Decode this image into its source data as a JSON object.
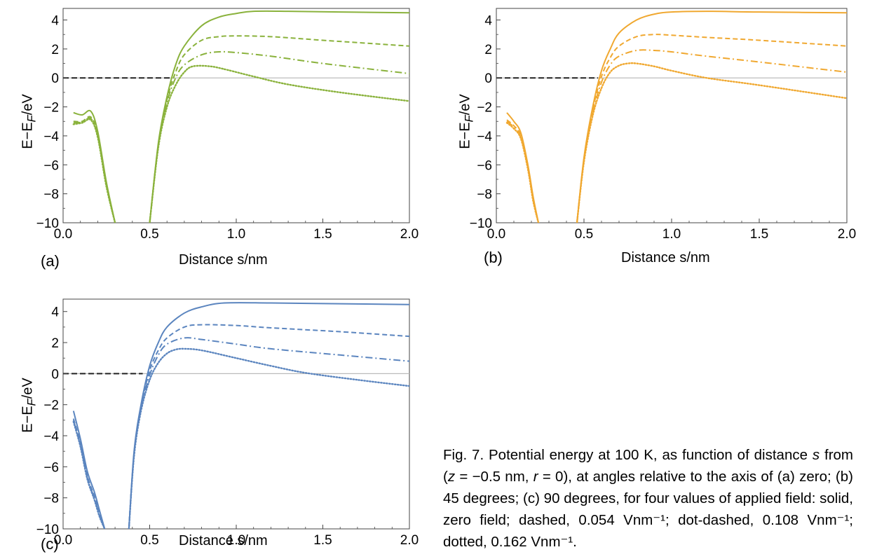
{
  "caption": {
    "lead": "Fig. 7.  Potential energy at 100 K, as function of distance ",
    "s_var": "s",
    "from_open": " from (",
    "z_var": "z",
    "z_value": " = −0.5 nm, ",
    "r_var": "r",
    "r_value": " = 0), at angles relative to the axis of (a) zero; (b) 45 degrees; (c) 90 degrees, for four values of applied field: solid, zero field; dashed, 0.054 Vnm⁻¹; dot-dashed, 0.108 Vnm⁻¹; dotted, 0.162 Vnm⁻¹."
  },
  "chart_data": [
    {
      "type": "line",
      "panel_label": "(a)",
      "color": "#8ab23c",
      "xlabel": "Distance s/nm",
      "ylabel": "E−E_F/eV",
      "ylabel_parts": {
        "pre": "E−E",
        "sub": "F",
        "post": "/eV"
      },
      "xlim": [
        0,
        2.0
      ],
      "ylim": [
        -10,
        4.8
      ],
      "xticks": [
        "0.0",
        "0.5",
        "1.0",
        "1.5",
        "2.0"
      ],
      "yticks": [
        "4",
        "2",
        "0",
        "−2",
        "−4",
        "−6",
        "−8",
        "−10"
      ],
      "fermi_dashed_to": 0.62,
      "series": [
        {
          "style": "solid",
          "left": {
            "x": [
              0.06,
              0.11,
              0.16,
              0.2,
              0.25,
              0.3
            ],
            "y": [
              -2.4,
              -2.55,
              -2.3,
              -3.7,
              -7.2,
              -10
            ]
          },
          "right": {
            "x": [
              0.5,
              0.55,
              0.6,
              0.65,
              0.7,
              0.8,
              0.9,
              1.0,
              1.1,
              1.3,
              1.6,
              2.0
            ],
            "y": [
              -10,
              -4.5,
              -1.3,
              0.9,
              2.2,
              3.6,
              4.2,
              4.45,
              4.6,
              4.6,
              4.55,
              4.5
            ]
          }
        },
        {
          "style": "dashed",
          "left": {
            "x": [
              0.06,
              0.11,
              0.16,
              0.2,
              0.25,
              0.3
            ],
            "y": [
              -3.0,
              -3.0,
              -2.7,
              -3.9,
              -7.3,
              -10
            ]
          },
          "right": {
            "x": [
              0.5,
              0.55,
              0.6,
              0.65,
              0.7,
              0.8,
              0.9,
              1.0,
              1.2,
              1.5,
              2.0
            ],
            "y": [
              -10,
              -4.6,
              -1.5,
              0.4,
              1.6,
              2.6,
              2.85,
              2.9,
              2.85,
              2.6,
              2.2
            ]
          }
        },
        {
          "style": "dashdot",
          "left": {
            "x": [
              0.06,
              0.11,
              0.16,
              0.2,
              0.25,
              0.3
            ],
            "y": [
              -3.1,
              -3.05,
              -2.8,
              -4.0,
              -7.4,
              -10
            ]
          },
          "right": {
            "x": [
              0.5,
              0.55,
              0.6,
              0.65,
              0.7,
              0.8,
              0.9,
              1.0,
              1.2,
              1.5,
              2.0
            ],
            "y": [
              -10,
              -4.7,
              -1.7,
              0.0,
              0.9,
              1.6,
              1.8,
              1.75,
              1.5,
              1.0,
              0.3
            ]
          }
        },
        {
          "style": "dotted",
          "left": {
            "x": [
              0.06,
              0.11,
              0.16,
              0.2,
              0.25,
              0.3
            ],
            "y": [
              -3.2,
              -3.1,
              -2.9,
              -4.1,
              -7.5,
              -10
            ]
          },
          "right": {
            "x": [
              0.5,
              0.55,
              0.6,
              0.65,
              0.7,
              0.75,
              0.85,
              0.95,
              1.1,
              1.3,
              1.6,
              2.0
            ],
            "y": [
              -10,
              -4.8,
              -2.0,
              -0.5,
              0.4,
              0.8,
              0.8,
              0.55,
              0.1,
              -0.45,
              -1.0,
              -1.6
            ]
          }
        }
      ]
    },
    {
      "type": "line",
      "panel_label": "(b)",
      "color": "#f0a830",
      "xlabel": "Distance s/nm",
      "ylabel": "E−E_F/eV",
      "ylabel_parts": {
        "pre": "E−E",
        "sub": "F",
        "post": "/eV"
      },
      "xlim": [
        0,
        2.0
      ],
      "ylim": [
        -10,
        4.8
      ],
      "xticks": [
        "0.0",
        "0.5",
        "1.0",
        "1.5",
        "2.0"
      ],
      "yticks": [
        "4",
        "2",
        "0",
        "−2",
        "−4",
        "−6",
        "−8",
        "−10"
      ],
      "fermi_dashed_to": 0.58,
      "series": [
        {
          "style": "solid",
          "left": {
            "x": [
              0.06,
              0.1,
              0.14,
              0.18,
              0.21,
              0.24
            ],
            "y": [
              -2.4,
              -3.0,
              -3.8,
              -6.0,
              -8.2,
              -10
            ]
          },
          "right": {
            "x": [
              0.46,
              0.5,
              0.55,
              0.6,
              0.65,
              0.7,
              0.8,
              0.9,
              1.0,
              1.2,
              1.5,
              2.0
            ],
            "y": [
              -10,
              -5.5,
              -2.0,
              0.5,
              2.0,
              3.1,
              4.0,
              4.4,
              4.55,
              4.6,
              4.55,
              4.5
            ]
          }
        },
        {
          "style": "dashed",
          "left": {
            "x": [
              0.06,
              0.1,
              0.14,
              0.18,
              0.21,
              0.24
            ],
            "y": [
              -2.9,
              -3.3,
              -4.0,
              -6.1,
              -8.3,
              -10
            ]
          },
          "right": {
            "x": [
              0.46,
              0.5,
              0.55,
              0.6,
              0.65,
              0.7,
              0.8,
              0.9,
              1.0,
              1.2,
              1.5,
              2.0
            ],
            "y": [
              -10,
              -5.6,
              -2.2,
              0.1,
              1.4,
              2.2,
              2.85,
              3.0,
              2.95,
              2.8,
              2.6,
              2.2
            ]
          }
        },
        {
          "style": "dashdot",
          "left": {
            "x": [
              0.06,
              0.1,
              0.14,
              0.18,
              0.21,
              0.24
            ],
            "y": [
              -3.0,
              -3.4,
              -4.1,
              -6.2,
              -8.4,
              -10
            ]
          },
          "right": {
            "x": [
              0.46,
              0.5,
              0.55,
              0.6,
              0.65,
              0.7,
              0.8,
              0.9,
              1.0,
              1.2,
              1.5,
              2.0
            ],
            "y": [
              -10,
              -5.7,
              -2.4,
              -0.3,
              0.9,
              1.5,
              1.9,
              1.9,
              1.8,
              1.5,
              1.1,
              0.4
            ]
          }
        },
        {
          "style": "dotted",
          "left": {
            "x": [
              0.06,
              0.1,
              0.14,
              0.18,
              0.21,
              0.24
            ],
            "y": [
              -3.1,
              -3.5,
              -4.2,
              -6.3,
              -8.5,
              -10
            ]
          },
          "right": {
            "x": [
              0.46,
              0.5,
              0.55,
              0.6,
              0.65,
              0.7,
              0.75,
              0.8,
              0.9,
              1.0,
              1.2,
              1.5,
              2.0
            ],
            "y": [
              -10,
              -5.8,
              -2.6,
              -0.7,
              0.4,
              0.85,
              1.0,
              1.0,
              0.8,
              0.5,
              0.0,
              -0.5,
              -1.4
            ]
          }
        }
      ]
    },
    {
      "type": "line",
      "panel_label": "(c)",
      "color": "#5b85bf",
      "xlabel": "Distance s/nm",
      "ylabel": "E−E_F/eV",
      "ylabel_parts": {
        "pre": "E−E",
        "sub": "F",
        "post": "/eV"
      },
      "xlim": [
        0,
        2.0
      ],
      "ylim": [
        -10,
        4.8
      ],
      "xticks": [
        "0.0",
        "0.5",
        "1.0",
        "1.5",
        "2.0"
      ],
      "yticks": [
        "4",
        "2",
        "0",
        "−2",
        "−4",
        "−6",
        "−8",
        "−10"
      ],
      "fermi_dashed_to": 0.46,
      "series": [
        {
          "style": "solid",
          "left": {
            "x": [
              0.06,
              0.1,
              0.14,
              0.18,
              0.21,
              0.24
            ],
            "y": [
              -2.4,
              -4.2,
              -6.3,
              -7.6,
              -8.8,
              -10
            ]
          },
          "right": {
            "x": [
              0.38,
              0.41,
              0.45,
              0.5,
              0.55,
              0.6,
              0.7,
              0.8,
              0.93,
              1.2,
              1.6,
              2.0
            ],
            "y": [
              -10,
              -5.0,
              -2.0,
              0.5,
              2.0,
              3.0,
              3.9,
              4.3,
              4.55,
              4.55,
              4.5,
              4.45
            ]
          }
        },
        {
          "style": "dashed",
          "left": {
            "x": [
              0.06,
              0.1,
              0.14,
              0.18,
              0.21,
              0.24
            ],
            "y": [
              -2.9,
              -4.5,
              -6.6,
              -7.9,
              -9.0,
              -10
            ]
          },
          "right": {
            "x": [
              0.38,
              0.41,
              0.45,
              0.5,
              0.55,
              0.6,
              0.7,
              0.8,
              1.0,
              1.2,
              1.6,
              2.0
            ],
            "y": [
              -10,
              -5.1,
              -2.1,
              0.2,
              1.5,
              2.3,
              3.0,
              3.15,
              3.1,
              2.95,
              2.7,
              2.4
            ]
          }
        },
        {
          "style": "dashdot",
          "left": {
            "x": [
              0.06,
              0.1,
              0.14,
              0.18,
              0.21,
              0.24
            ],
            "y": [
              -3.0,
              -4.6,
              -6.7,
              -8.0,
              -9.1,
              -10
            ]
          },
          "right": {
            "x": [
              0.38,
              0.41,
              0.45,
              0.5,
              0.55,
              0.6,
              0.7,
              0.8,
              1.0,
              1.2,
              1.6,
              2.0
            ],
            "y": [
              -10,
              -5.2,
              -2.2,
              -0.1,
              1.2,
              1.9,
              2.3,
              2.2,
              1.9,
              1.6,
              1.2,
              0.8
            ]
          }
        },
        {
          "style": "dotted",
          "left": {
            "x": [
              0.06,
              0.1,
              0.14,
              0.18,
              0.21,
              0.24
            ],
            "y": [
              -3.1,
              -4.7,
              -6.8,
              -8.1,
              -9.2,
              -10
            ]
          },
          "right": {
            "x": [
              0.38,
              0.41,
              0.45,
              0.5,
              0.55,
              0.6,
              0.65,
              0.7,
              0.8,
              1.0,
              1.2,
              1.4,
              1.7,
              2.0
            ],
            "y": [
              -10,
              -5.3,
              -2.4,
              -0.4,
              0.7,
              1.3,
              1.55,
              1.6,
              1.5,
              1.0,
              0.5,
              0.05,
              -0.4,
              -0.8
            ]
          }
        }
      ]
    }
  ]
}
